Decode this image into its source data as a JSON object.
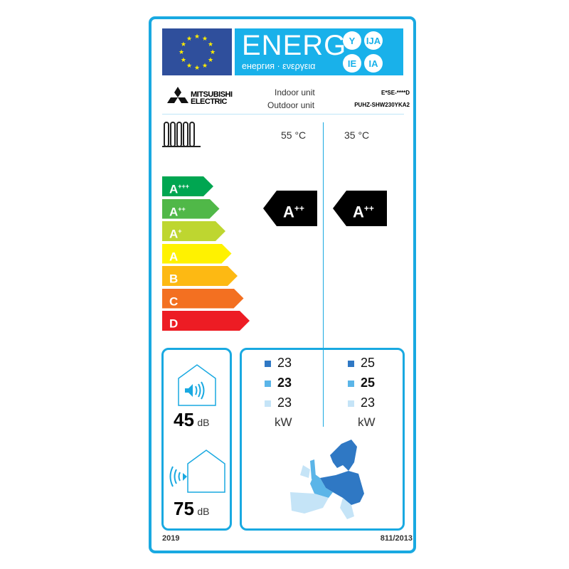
{
  "header": {
    "energy_word": "ENERG",
    "subtitle": "енергия · ενεργεια",
    "suffixes": [
      "Y",
      "IJA",
      "IE",
      "IA"
    ]
  },
  "brand": {
    "line1": "MITSUBISHI",
    "line2": "ELECTRIC"
  },
  "units": {
    "indoor_label": "Indoor unit",
    "outdoor_label": "Outdoor unit",
    "indoor_model": "E*SE-****D",
    "outdoor_model": "PUHZ-SHW230YKA2"
  },
  "temperatures": [
    "55 °C",
    "35 °C"
  ],
  "scale": [
    {
      "base": "A",
      "sup": "+++",
      "color": "#00a651"
    },
    {
      "base": "A",
      "sup": "++",
      "color": "#50b848"
    },
    {
      "base": "A",
      "sup": "+",
      "color": "#bed630"
    },
    {
      "base": "A",
      "sup": "",
      "color": "#fff200"
    },
    {
      "base": "B",
      "sup": "",
      "color": "#fdb913"
    },
    {
      "base": "C",
      "sup": "",
      "color": "#f37021"
    },
    {
      "base": "D",
      "sup": "",
      "color": "#ed1c24"
    }
  ],
  "ratings": [
    {
      "base": "A",
      "sup": "++"
    },
    {
      "base": "A",
      "sup": "++"
    }
  ],
  "noise": {
    "indoor_value": "45",
    "outdoor_value": "75",
    "unit": "dB"
  },
  "power": {
    "unit": "kW",
    "col55": [
      "23",
      "23",
      "23"
    ],
    "col35": [
      "25",
      "25",
      "23"
    ],
    "zone_colors": [
      "#2f78c4",
      "#5bb5e8",
      "#c5e4f7"
    ]
  },
  "footer": {
    "year": "2019",
    "regulation": "811/2013"
  }
}
